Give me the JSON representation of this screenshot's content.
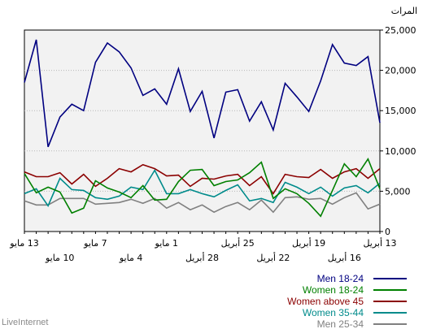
{
  "brand": "LiveInternet",
  "chart_data": {
    "type": "line",
    "ylabel": "المرات",
    "ylim": [
      0,
      25000
    ],
    "yticks": [
      0,
      5000,
      10000,
      15000,
      20000,
      25000
    ],
    "ytick_labels": [
      "0",
      "5,000",
      "10,000",
      "15,000",
      "20,000",
      "25,000"
    ],
    "grid": true,
    "xticks_top": [
      {
        "label": "13 مايو",
        "day": 0
      },
      {
        "label": "7 مايو",
        "day": 6
      },
      {
        "label": "1 مايو",
        "day": 12
      },
      {
        "label": "25 أبريل",
        "day": 18
      },
      {
        "label": "19 أبريل",
        "day": 24
      },
      {
        "label": "13 أبريل",
        "day": 30
      }
    ],
    "xticks_bottom": [
      {
        "label": "10 مايو",
        "day": 3
      },
      {
        "label": "4 مايو",
        "day": 9
      },
      {
        "label": "28 أبريل",
        "day": 15
      },
      {
        "label": "22 أبريل",
        "day": 21
      },
      {
        "label": "16 أبريل",
        "day": 27
      }
    ],
    "x_order_note": "day 0 = 13 مايو (left), day 30 = 13 أبريل (right)",
    "series": [
      {
        "name": "Men 18-24",
        "color": "#000080",
        "values": [
          18500,
          23800,
          10500,
          14200,
          15800,
          15000,
          21000,
          23400,
          22300,
          20300,
          16900,
          17700,
          15800,
          20200,
          14900,
          17400,
          11600,
          17300,
          17600,
          13700,
          16100,
          12600,
          18400,
          16700,
          14900,
          18700,
          23200,
          20900,
          20600,
          21700,
          13500
        ]
      },
      {
        "name": "Women 18-24",
        "color": "#008000",
        "values": [
          7200,
          4800,
          5500,
          4900,
          2300,
          2900,
          6300,
          5400,
          4900,
          4200,
          5700,
          3900,
          4000,
          6200,
          7600,
          7700,
          5700,
          6200,
          6400,
          7300,
          8600,
          4100,
          5300,
          4700,
          3500,
          1900,
          5100,
          8400,
          6800,
          9000,
          5300
        ]
      },
      {
        "name": "Women above 45",
        "color": "#8b0000",
        "values": [
          7400,
          6800,
          6800,
          7300,
          5900,
          7100,
          5600,
          6600,
          7800,
          7400,
          8300,
          7800,
          6900,
          7000,
          5600,
          6600,
          6500,
          6900,
          7100,
          5700,
          6800,
          4700,
          7100,
          6800,
          6700,
          7700,
          6600,
          7400,
          7800,
          6600,
          7800
        ]
      },
      {
        "name": "Women 35-44",
        "color": "#008b8b",
        "values": [
          4700,
          5300,
          3200,
          6600,
          5200,
          5100,
          4200,
          4000,
          4400,
          5500,
          5200,
          7600,
          4700,
          4700,
          5200,
          4700,
          4300,
          5100,
          5800,
          3800,
          4100,
          3600,
          6100,
          5500,
          4700,
          5500,
          4400,
          5400,
          5700,
          4800,
          6000
        ]
      },
      {
        "name": "Men 25-34",
        "color": "#808080",
        "values": [
          3800,
          3300,
          3300,
          4100,
          4100,
          4100,
          3400,
          3500,
          3600,
          4000,
          3500,
          4100,
          2900,
          3600,
          2700,
          3300,
          2400,
          3100,
          3600,
          2700,
          3900,
          2400,
          4200,
          4300,
          4000,
          4100,
          3400,
          4200,
          4800,
          2800,
          3400
        ]
      }
    ],
    "legend_placement": "bottom-right"
  }
}
